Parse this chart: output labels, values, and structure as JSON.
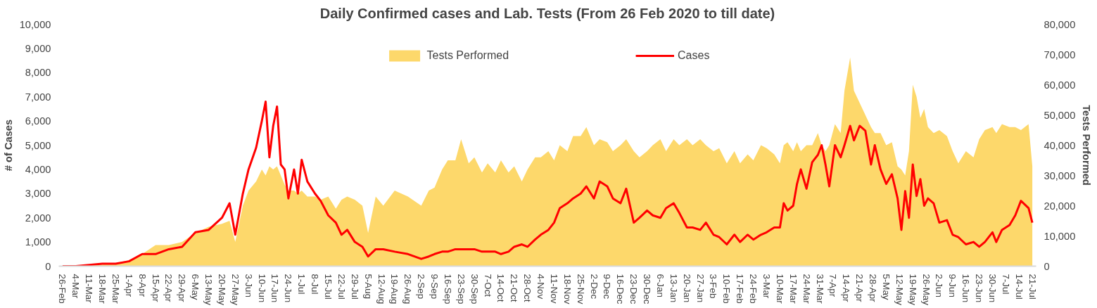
{
  "chart_data": {
    "type": "line",
    "title": "Daily Confirmed cases and Lab. Tests (From 26 Feb 2020 to till date)",
    "ylabel": "# of Cases",
    "y2label": "Tests Performed",
    "x": [
      "2020-02-26",
      "2020-03-04",
      "2020-03-11",
      "2020-03-18",
      "2020-03-25",
      "2020-04-01",
      "2020-04-08",
      "2020-04-15",
      "2020-04-22",
      "2020-04-29",
      "2020-05-06",
      "2020-05-13",
      "2020-05-20",
      "2020-05-24",
      "2020-05-27",
      "2020-05-31",
      "2020-06-03",
      "2020-06-07",
      "2020-06-10",
      "2020-06-12",
      "2020-06-14",
      "2020-06-16",
      "2020-06-18",
      "2020-06-20",
      "2020-06-22",
      "2020-06-24",
      "2020-06-27",
      "2020-06-29",
      "2020-07-01",
      "2020-07-04",
      "2020-07-08",
      "2020-07-11",
      "2020-07-15",
      "2020-07-19",
      "2020-07-22",
      "2020-07-25",
      "2020-07-29",
      "2020-08-02",
      "2020-08-05",
      "2020-08-09",
      "2020-08-13",
      "2020-08-19",
      "2020-08-26",
      "2020-09-02",
      "2020-09-06",
      "2020-09-09",
      "2020-09-13",
      "2020-09-16",
      "2020-09-20",
      "2020-09-23",
      "2020-09-27",
      "2020-09-30",
      "2020-10-04",
      "2020-10-07",
      "2020-10-11",
      "2020-10-14",
      "2020-10-18",
      "2020-10-21",
      "2020-10-25",
      "2020-10-28",
      "2020-11-01",
      "2020-11-04",
      "2020-11-08",
      "2020-11-11",
      "2020-11-14",
      "2020-11-18",
      "2020-11-21",
      "2020-11-25",
      "2020-11-28",
      "2020-12-02",
      "2020-12-05",
      "2020-12-09",
      "2020-12-12",
      "2020-12-16",
      "2020-12-19",
      "2020-12-23",
      "2020-12-26",
      "2020-12-30",
      "2021-01-02",
      "2021-01-06",
      "2021-01-09",
      "2021-01-13",
      "2021-01-16",
      "2021-01-20",
      "2021-01-23",
      "2021-01-27",
      "2021-01-30",
      "2021-02-03",
      "2021-02-06",
      "2021-02-10",
      "2021-02-14",
      "2021-02-17",
      "2021-02-21",
      "2021-02-24",
      "2021-02-28",
      "2021-03-03",
      "2021-03-07",
      "2021-03-10",
      "2021-03-12",
      "2021-03-14",
      "2021-03-17",
      "2021-03-19",
      "2021-03-21",
      "2021-03-24",
      "2021-03-27",
      "2021-03-30",
      "2021-04-01",
      "2021-04-03",
      "2021-04-05",
      "2021-04-08",
      "2021-04-11",
      "2021-04-13",
      "2021-04-16",
      "2021-04-18",
      "2021-04-21",
      "2021-04-24",
      "2021-04-27",
      "2021-04-29",
      "2021-05-02",
      "2021-05-05",
      "2021-05-08",
      "2021-05-11",
      "2021-05-13",
      "2021-05-15",
      "2021-05-17",
      "2021-05-19",
      "2021-05-21",
      "2021-05-23",
      "2021-05-25",
      "2021-05-27",
      "2021-05-30",
      "2021-06-02",
      "2021-06-06",
      "2021-06-09",
      "2021-06-12",
      "2021-06-16",
      "2021-06-20",
      "2021-06-23",
      "2021-06-26",
      "2021-06-30",
      "2021-07-02",
      "2021-07-05",
      "2021-07-09",
      "2021-07-12",
      "2021-07-15",
      "2021-07-19",
      "2021-07-21"
    ],
    "series": [
      {
        "name": "Tests Performed",
        "type": "area",
        "axis": "y2",
        "color": "#fdd86b",
        "values": [
          0,
          0,
          300,
          500,
          1000,
          2000,
          4000,
          7000,
          7000,
          8000,
          11000,
          13000,
          14000,
          15000,
          8000,
          20000,
          25000,
          28000,
          32000,
          30000,
          33000,
          32000,
          33000,
          30000,
          27000,
          25000,
          25000,
          24000,
          25000,
          23000,
          23000,
          22000,
          23000,
          19000,
          22000,
          23000,
          22000,
          20000,
          11000,
          23000,
          20000,
          25000,
          23000,
          20000,
          25000,
          26000,
          32000,
          35000,
          35000,
          42000,
          34000,
          36000,
          31000,
          34000,
          31000,
          35000,
          31000,
          33000,
          28000,
          32000,
          36000,
          36000,
          38000,
          35000,
          40000,
          38000,
          43000,
          43000,
          46000,
          40000,
          42000,
          41000,
          38000,
          40000,
          42000,
          38000,
          36000,
          38000,
          40000,
          42000,
          38000,
          42000,
          40000,
          42000,
          40000,
          42000,
          40000,
          38000,
          39000,
          34000,
          38000,
          34000,
          37000,
          35000,
          40000,
          39000,
          37000,
          34000,
          40000,
          41000,
          38000,
          41000,
          38000,
          40000,
          40000,
          44000,
          40000,
          38000,
          40000,
          47000,
          44000,
          58000,
          69000,
          58000,
          54000,
          50000,
          46000,
          44000,
          44000,
          40000,
          41000,
          33000,
          32000,
          30000,
          38000,
          60000,
          56000,
          49000,
          52000,
          46000,
          44000,
          45000,
          43000,
          38000,
          34000,
          38000,
          36000,
          42000,
          45000,
          46000,
          44000,
          47000,
          46000,
          46000,
          45000,
          47000,
          33000
        ]
      },
      {
        "name": "Cases",
        "axis": "y",
        "color": "#ff0000",
        "values": [
          0,
          0,
          50,
          100,
          100,
          200,
          500,
          500,
          700,
          800,
          1400,
          1500,
          2000,
          2600,
          1300,
          3000,
          4000,
          4900,
          6000,
          6800,
          4500,
          5800,
          6600,
          4200,
          4000,
          2800,
          4000,
          3000,
          4400,
          3500,
          3000,
          2700,
          2100,
          1800,
          1300,
          1500,
          1000,
          800,
          400,
          700,
          700,
          600,
          500,
          300,
          400,
          500,
          600,
          600,
          700,
          700,
          700,
          700,
          600,
          600,
          600,
          500,
          600,
          800,
          900,
          800,
          1100,
          1300,
          1500,
          1800,
          2400,
          2600,
          2800,
          3000,
          3300,
          2800,
          3500,
          3300,
          2800,
          2600,
          3200,
          1800,
          2000,
          2300,
          2100,
          2000,
          2400,
          2600,
          2200,
          1600,
          1600,
          1500,
          1800,
          1300,
          1200,
          900,
          1300,
          1000,
          1300,
          1100,
          1300,
          1400,
          1600,
          1600,
          2600,
          2300,
          2500,
          3400,
          4000,
          3200,
          4300,
          4600,
          5000,
          4200,
          3300,
          5000,
          4500,
          5000,
          5800,
          5200,
          5800,
          5600,
          4200,
          5000,
          4000,
          3400,
          3800,
          2800,
          1500,
          3100,
          2000,
          4200,
          2900,
          3600,
          2500,
          2800,
          2600,
          1800,
          1900,
          1300,
          1200,
          900,
          1000,
          800,
          1000,
          1400,
          1000,
          1500,
          1700,
          2100,
          2700,
          2400,
          1800
        ]
      }
    ],
    "xlim": [
      "2020-02-24",
      "2021-07-23"
    ],
    "xticks": [
      {
        "value": "2020-02-26",
        "label": "26-Feb"
      },
      {
        "value": "2020-03-04",
        "label": "4-Mar"
      },
      {
        "value": "2020-03-11",
        "label": "11-Mar"
      },
      {
        "value": "2020-03-18",
        "label": "18-Mar"
      },
      {
        "value": "2020-03-25",
        "label": "25-Mar"
      },
      {
        "value": "2020-04-01",
        "label": "1-Apr"
      },
      {
        "value": "2020-04-08",
        "label": "8-Apr"
      },
      {
        "value": "2020-04-15",
        "label": "15-Apr"
      },
      {
        "value": "2020-04-22",
        "label": "22-Apr"
      },
      {
        "value": "2020-04-29",
        "label": "29-Apr"
      },
      {
        "value": "2020-05-06",
        "label": "6-May"
      },
      {
        "value": "2020-05-13",
        "label": "13-May"
      },
      {
        "value": "2020-05-20",
        "label": "20-May"
      },
      {
        "value": "2020-05-27",
        "label": "27-May"
      },
      {
        "value": "2020-06-03",
        "label": "3-Jun"
      },
      {
        "value": "2020-06-10",
        "label": "10-Jun"
      },
      {
        "value": "2020-06-17",
        "label": "17-Jun"
      },
      {
        "value": "2020-06-24",
        "label": "24-Jun"
      },
      {
        "value": "2020-07-01",
        "label": "1-Jul"
      },
      {
        "value": "2020-07-08",
        "label": "8-Jul"
      },
      {
        "value": "2020-07-15",
        "label": "15-Jul"
      },
      {
        "value": "2020-07-22",
        "label": "22-Jul"
      },
      {
        "value": "2020-07-29",
        "label": "29-Jul"
      },
      {
        "value": "2020-08-05",
        "label": "5-Aug"
      },
      {
        "value": "2020-08-12",
        "label": "12-Aug"
      },
      {
        "value": "2020-08-19",
        "label": "19-Aug"
      },
      {
        "value": "2020-08-26",
        "label": "26-Aug"
      },
      {
        "value": "2020-09-02",
        "label": "2-Sep"
      },
      {
        "value": "2020-09-09",
        "label": "9-Sep"
      },
      {
        "value": "2020-09-16",
        "label": "16-Sep"
      },
      {
        "value": "2020-09-23",
        "label": "23-Sep"
      },
      {
        "value": "2020-09-30",
        "label": "30-Sep"
      },
      {
        "value": "2020-10-07",
        "label": "7-Oct"
      },
      {
        "value": "2020-10-14",
        "label": "14-Oct"
      },
      {
        "value": "2020-10-21",
        "label": "21-Oct"
      },
      {
        "value": "2020-10-28",
        "label": "28-Oct"
      },
      {
        "value": "2020-11-04",
        "label": "4-Nov"
      },
      {
        "value": "2020-11-11",
        "label": "11-Nov"
      },
      {
        "value": "2020-11-18",
        "label": "18-Nov"
      },
      {
        "value": "2020-11-25",
        "label": "25-Nov"
      },
      {
        "value": "2020-12-02",
        "label": "2-Dec"
      },
      {
        "value": "2020-12-09",
        "label": "9-Dec"
      },
      {
        "value": "2020-12-16",
        "label": "16-Dec"
      },
      {
        "value": "2020-12-23",
        "label": "23-Dec"
      },
      {
        "value": "2020-12-30",
        "label": "30-Dec"
      },
      {
        "value": "2021-01-06",
        "label": "6-Jan"
      },
      {
        "value": "2021-01-13",
        "label": "13-Jan"
      },
      {
        "value": "2021-01-20",
        "label": "20-Jan"
      },
      {
        "value": "2021-01-27",
        "label": "27-Jan"
      },
      {
        "value": "2021-02-03",
        "label": "3-Feb"
      },
      {
        "value": "2021-02-10",
        "label": "10-Feb"
      },
      {
        "value": "2021-02-17",
        "label": "17-Feb"
      },
      {
        "value": "2021-02-24",
        "label": "24-Feb"
      },
      {
        "value": "2021-03-03",
        "label": "3-Mar"
      },
      {
        "value": "2021-03-10",
        "label": "10-Mar"
      },
      {
        "value": "2021-03-17",
        "label": "17-Mar"
      },
      {
        "value": "2021-03-24",
        "label": "24-Mar"
      },
      {
        "value": "2021-03-31",
        "label": "31-Mar"
      },
      {
        "value": "2021-04-07",
        "label": "7-Apr"
      },
      {
        "value": "2021-04-14",
        "label": "14-Apr"
      },
      {
        "value": "2021-04-21",
        "label": "21-Apr"
      },
      {
        "value": "2021-04-28",
        "label": "28-Apr"
      },
      {
        "value": "2021-05-05",
        "label": "5-May"
      },
      {
        "value": "2021-05-12",
        "label": "12-May"
      },
      {
        "value": "2021-05-19",
        "label": "19-May"
      },
      {
        "value": "2021-05-26",
        "label": "26-May"
      },
      {
        "value": "2021-06-02",
        "label": "2-Jun"
      },
      {
        "value": "2021-06-09",
        "label": "9-Jun"
      },
      {
        "value": "2021-06-16",
        "label": "16-Jun"
      },
      {
        "value": "2021-06-23",
        "label": "23-Jun"
      },
      {
        "value": "2021-06-30",
        "label": "30-Jun"
      },
      {
        "value": "2021-07-07",
        "label": "7-Jul"
      },
      {
        "value": "2021-07-14",
        "label": "14-Jul"
      },
      {
        "value": "2021-07-21",
        "label": "21-Jul"
      }
    ],
    "ylim": [
      0,
      10000
    ],
    "yticks": [
      {
        "value": 0,
        "label": "0"
      },
      {
        "value": 1000,
        "label": "1,000"
      },
      {
        "value": 2000,
        "label": "2,000"
      },
      {
        "value": 3000,
        "label": "3,000"
      },
      {
        "value": 4000,
        "label": "4,000"
      },
      {
        "value": 5000,
        "label": "5,000"
      },
      {
        "value": 6000,
        "label": "6,000"
      },
      {
        "value": 7000,
        "label": "7,000"
      },
      {
        "value": 8000,
        "label": "8,000"
      },
      {
        "value": 9000,
        "label": "9,000"
      },
      {
        "value": 10000,
        "label": "10,000"
      }
    ],
    "y2lim": [
      0,
      80000
    ],
    "y2ticks": [
      {
        "value": 0,
        "label": "0"
      },
      {
        "value": 10000,
        "label": "10,000"
      },
      {
        "value": 20000,
        "label": "20,000"
      },
      {
        "value": 30000,
        "label": "30,000"
      },
      {
        "value": 40000,
        "label": "40,000"
      },
      {
        "value": 50000,
        "label": "50,000"
      },
      {
        "value": 60000,
        "label": "60,000"
      },
      {
        "value": 70000,
        "label": "70,000"
      },
      {
        "value": 80000,
        "label": "80,000"
      }
    ],
    "grid": false,
    "legend": "top",
    "marker": "none",
    "line_style": "solid"
  }
}
